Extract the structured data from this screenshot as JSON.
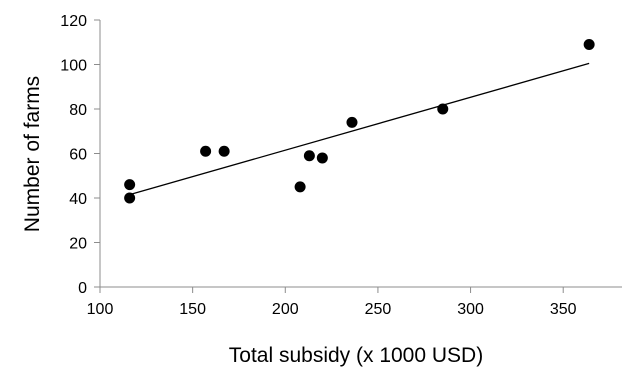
{
  "chart_data": {
    "type": "scatter",
    "title": "",
    "xlabel": "Total subsidy (x 1000 USD)",
    "ylabel": "Number of farms",
    "xlim": [
      100,
      365
    ],
    "ylim": [
      0,
      120
    ],
    "xticks": [
      100,
      150,
      200,
      250,
      300,
      350
    ],
    "yticks": [
      0,
      20,
      40,
      60,
      80,
      100,
      120
    ],
    "grid": false,
    "legend": "none",
    "series": [
      {
        "points": [
          {
            "x": 116,
            "y": 46
          },
          {
            "x": 116,
            "y": 40
          },
          {
            "x": 157,
            "y": 61
          },
          {
            "x": 167,
            "y": 61
          },
          {
            "x": 208,
            "y": 45
          },
          {
            "x": 213,
            "y": 59
          },
          {
            "x": 220,
            "y": 58
          },
          {
            "x": 236,
            "y": 74
          },
          {
            "x": 285,
            "y": 80
          },
          {
            "x": 364,
            "y": 109
          }
        ],
        "color": "#000000"
      }
    ],
    "trendline": {
      "type": "linear",
      "from": {
        "x": 116,
        "y": 41.5
      },
      "to": {
        "x": 364,
        "y": 100.5
      },
      "color": "#000000"
    }
  }
}
